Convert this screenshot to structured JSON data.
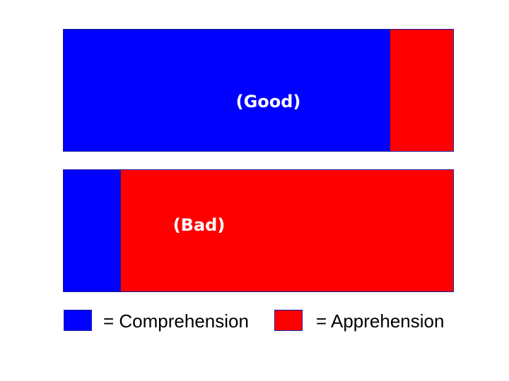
{
  "bars": [
    {
      "label": "(Good)",
      "comprehension_fraction": 0.836,
      "apprehension_fraction": 0.164
    },
    {
      "label": "(Bad)",
      "comprehension_fraction": 0.147,
      "apprehension_fraction": 0.853
    }
  ],
  "legend": {
    "comprehension_text": "= Comprehension",
    "apprehension_text": "= Apprehension"
  },
  "colors": {
    "comprehension": "#0000ff",
    "apprehension": "#ff0000",
    "outline": "#1a1a9a"
  }
}
